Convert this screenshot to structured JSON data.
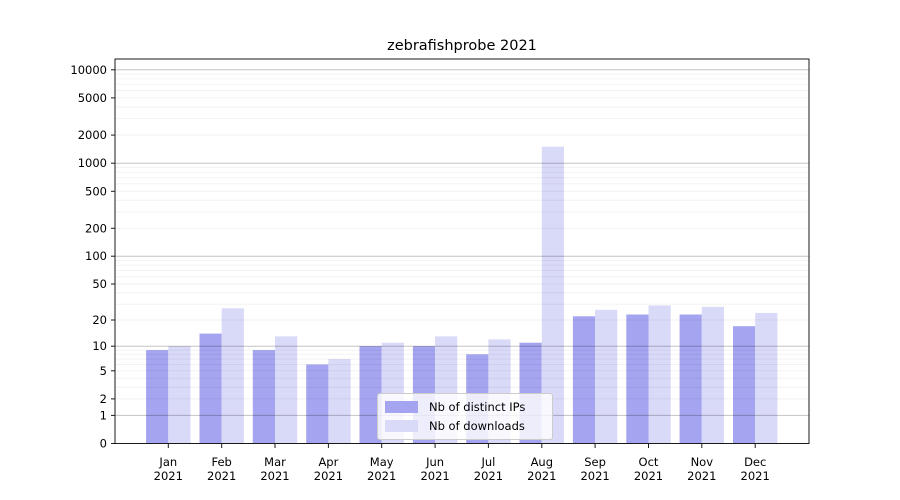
{
  "title": "zebrafishprobe 2021",
  "chart_data": {
    "type": "bar",
    "title": "zebrafishprobe 2021",
    "xlabel": "",
    "ylabel": "",
    "yscale": "symlog (log10 of 1+value), zero shown at baseline",
    "grid": true,
    "legend_position": "lower center-left inside plot",
    "categories": [
      "Jan",
      "Feb",
      "Mar",
      "Apr",
      "May",
      "Jun",
      "Jul",
      "Aug",
      "Sep",
      "Oct",
      "Nov",
      "Dec"
    ],
    "category_year_suffix": "2021",
    "yticks": [
      10000,
      5000,
      2000,
      1000,
      500,
      200,
      100,
      50,
      20,
      10,
      5,
      2,
      1,
      0
    ],
    "ylim": [
      0,
      12900
    ],
    "series": [
      {
        "name": "Nb of distinct IPs",
        "color": "#a4a4f0",
        "values": [
          9,
          14,
          9,
          6,
          10,
          10,
          8,
          11,
          22,
          23,
          23,
          17
        ]
      },
      {
        "name": "Nb of downloads",
        "color": "#d9d9f8",
        "values": [
          10,
          27,
          13,
          7,
          11,
          13,
          12,
          1500,
          26,
          29,
          28,
          24
        ]
      }
    ]
  },
  "colors": {
    "major_grid": "rgba(0,0,0,0.24)",
    "minor_grid": "rgba(0,0,0,0.05)",
    "spine": "#1a1a1a",
    "tick_label": "#000000"
  }
}
